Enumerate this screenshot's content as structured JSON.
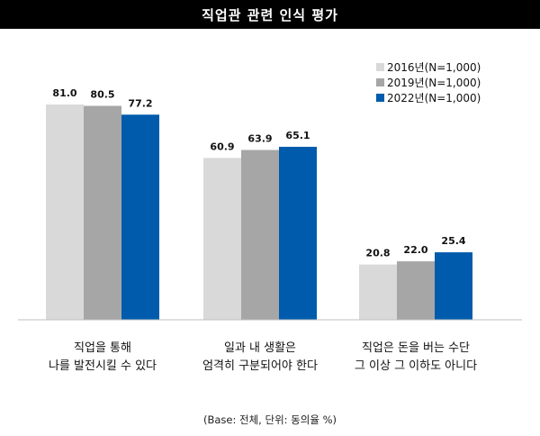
{
  "title": "직업관 관련 인식 평가",
  "note": "(Base: 전체, 단위: 동의율 %)",
  "colors": {
    "s2016": "#d9d9d9",
    "s2019": "#a6a6a6",
    "s2022": "#005bac"
  },
  "chart_data": {
    "type": "bar",
    "title": "직업관 관련 인식 평가",
    "categories": [
      [
        "직업을 통해",
        "나를 발전시킬 수 있다"
      ],
      [
        "일과 내 생활은",
        "엄격히 구분되어야 한다"
      ],
      [
        "직업은 돈을 버는 수단",
        "그 이상 그 이하도 아니다"
      ]
    ],
    "series": [
      {
        "name": "2016년(N=1,000)",
        "values": [
          81.0,
          60.9,
          20.8
        ]
      },
      {
        "name": "2019년(N=1,000)",
        "values": [
          80.5,
          63.9,
          22.0
        ]
      },
      {
        "name": "2022년(N=1,000)",
        "values": [
          77.2,
          65.1,
          25.4
        ]
      }
    ],
    "ylim": [
      0,
      100
    ],
    "grid": false,
    "legend": "top-right"
  }
}
